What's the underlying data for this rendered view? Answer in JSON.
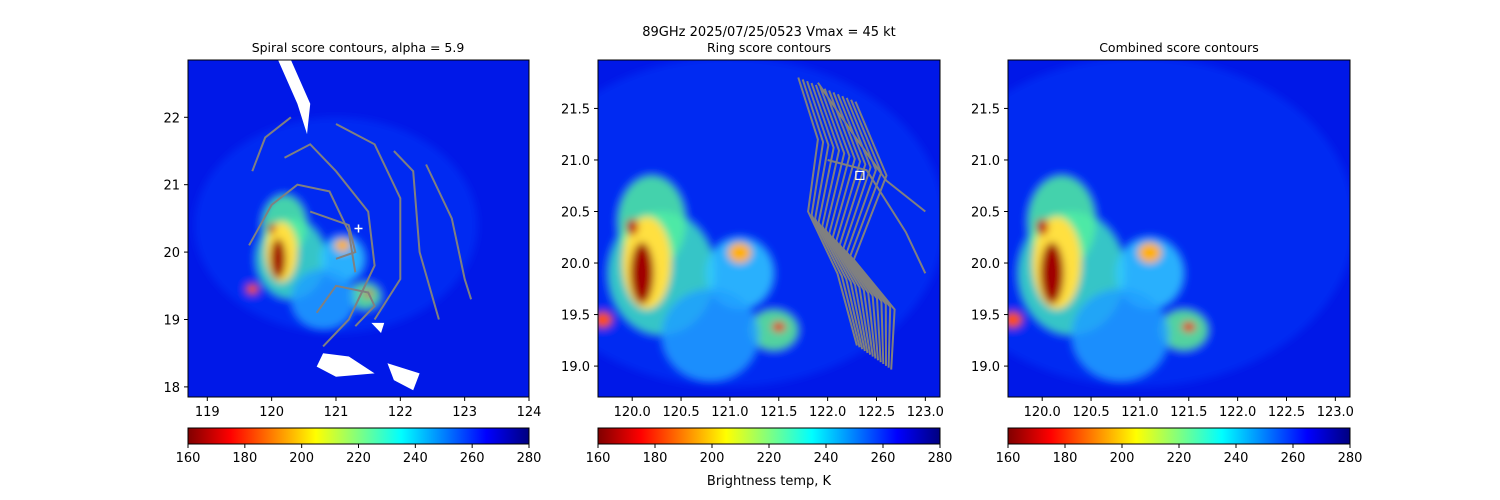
{
  "figure": {
    "suptitle_line1": "89GHz  2025/07/25/0523    Vmax = 45 kt",
    "colorbar_label": "Brightness temp, K",
    "colormap": [
      "#800000",
      "#ff0000",
      "#ff8000",
      "#ffff00",
      "#80ff80",
      "#00ffff",
      "#0080ff",
      "#0000ff",
      "#000080"
    ],
    "contour_color": "#808080",
    "marker_color": "#ffffff"
  },
  "chart_data": [
    {
      "type": "heatmap",
      "title": "Spiral score contours, alpha =  5.9",
      "xlim": [
        118.7,
        124.0
      ],
      "ylim": [
        17.85,
        22.85
      ],
      "xticks": [
        119,
        120,
        121,
        122,
        123,
        124
      ],
      "yticks": [
        18,
        19,
        20,
        21,
        22
      ],
      "colorbar": {
        "min": 160,
        "max": 280,
        "ticks": [
          160,
          180,
          200,
          220,
          240,
          260,
          280
        ]
      },
      "contours": true,
      "marker": {
        "shape": "plus",
        "lon": 121.35,
        "lat": 20.35
      },
      "missing_data": "white"
    },
    {
      "type": "heatmap",
      "title": "Ring score contours",
      "xlim": [
        119.65,
        123.15
      ],
      "ylim": [
        18.7,
        21.97
      ],
      "xticks": [
        120.0,
        120.5,
        121.0,
        121.5,
        122.0,
        122.5,
        123.0
      ],
      "yticks": [
        19.0,
        19.5,
        20.0,
        20.5,
        21.0,
        21.5
      ],
      "xticklabels": [
        "120.0",
        "120.5",
        "121.0",
        "121.5",
        "122.0",
        "122.5",
        "123.0"
      ],
      "yticklabels": [
        "19.0",
        "19.5",
        "20.0",
        "20.5",
        "21.0",
        "21.5"
      ],
      "colorbar": {
        "min": 160,
        "max": 280,
        "ticks": [
          160,
          180,
          200,
          220,
          240,
          260,
          280
        ]
      },
      "contours": true,
      "marker": {
        "shape": "square",
        "lon": 122.33,
        "lat": 20.85
      }
    },
    {
      "type": "heatmap",
      "title": "Combined score contours",
      "xlim": [
        119.65,
        123.15
      ],
      "ylim": [
        18.7,
        21.97
      ],
      "xticks": [
        120.0,
        120.5,
        121.0,
        121.5,
        122.0,
        122.5,
        123.0
      ],
      "yticks": [
        19.0,
        19.5,
        20.0,
        20.5,
        21.0,
        21.5
      ],
      "xticklabels": [
        "120.0",
        "120.5",
        "121.0",
        "121.5",
        "122.0",
        "122.5",
        "123.0"
      ],
      "yticklabels": [
        "19.0",
        "19.5",
        "20.0",
        "20.5",
        "21.0",
        "21.5"
      ],
      "colorbar": {
        "min": 160,
        "max": 280,
        "ticks": [
          160,
          180,
          200,
          220,
          240,
          260,
          280
        ]
      },
      "contours": false
    }
  ]
}
